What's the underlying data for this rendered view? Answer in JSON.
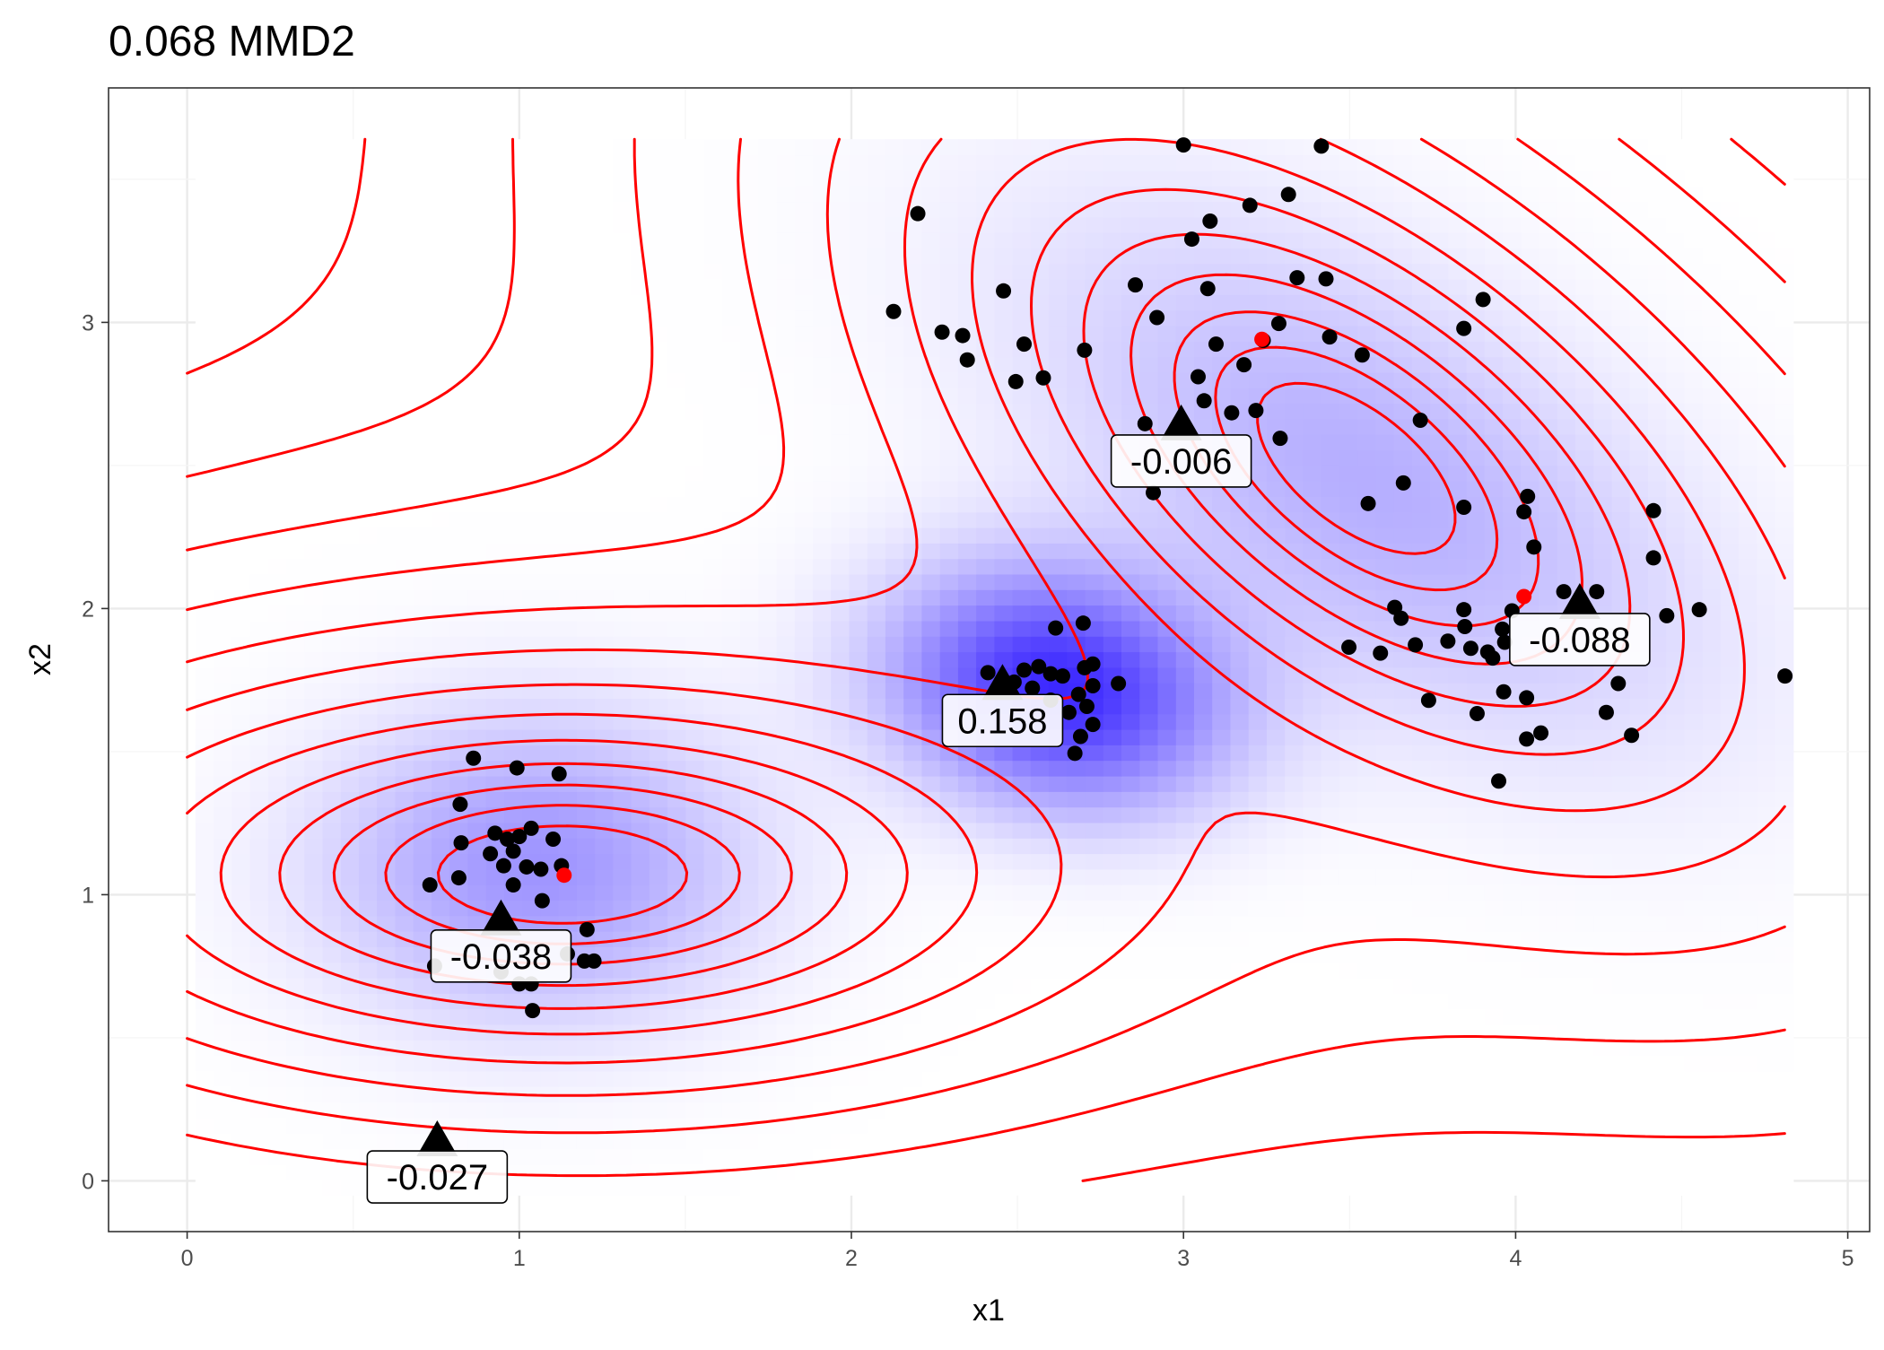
{
  "chart_data": {
    "type": "scatter",
    "title": "0.068 MMD2",
    "xlabel": "x1",
    "ylabel": "x2",
    "xlim": [
      -0.24,
      5.05
    ],
    "ylim": [
      -0.18,
      3.72
    ],
    "x_ticks": [
      "0",
      "1",
      "2",
      "3",
      "4",
      "5"
    ],
    "x_tick_values": [
      0,
      1,
      2,
      3,
      4,
      5
    ],
    "y_ticks": [
      "0",
      "1",
      "2",
      "3"
    ],
    "y_tick_values": [
      0,
      1,
      2,
      3
    ],
    "grid": true,
    "colors": {
      "points": "#000000",
      "centers": "#ff0000",
      "contour": "#ff0000",
      "heat_high": "#3c28ff",
      "heat_low": "#ffffff"
    },
    "heatmap_range": {
      "x": [
        0.025,
        4.836
      ],
      "y": [
        -0.05,
        3.64
      ]
    },
    "heatmap_components": [
      {
        "mean": [
          2.62,
          1.72
        ],
        "scale": [
          0.36,
          0.28
        ],
        "angle": -20,
        "weight": 1.0
      },
      {
        "mean": [
          1.05,
          1.1
        ],
        "scale": [
          0.45,
          0.38
        ],
        "angle": 0,
        "weight": 0.5
      },
      {
        "mean": [
          3.55,
          2.45
        ],
        "scale": [
          0.85,
          0.45
        ],
        "angle": -40,
        "weight": 0.38
      }
    ],
    "contour_range": {
      "x": [
        0,
        4.81
      ],
      "y": [
        0,
        3.64
      ]
    },
    "contour_components": [
      {
        "mean": [
          1.13,
          1.07
        ],
        "scale": [
          0.55,
          0.25
        ],
        "angle": 0,
        "weight": 1.0
      },
      {
        "mean": [
          3.52,
          2.49
        ],
        "scale": [
          0.55,
          0.28
        ],
        "angle": -45,
        "weight": 1.0
      }
    ],
    "contour_levels": {
      "start": -0.57,
      "step": -0.42,
      "count": 30
    },
    "points": [
      [
        0.862,
        1.477
      ],
      [
        0.993,
        1.443
      ],
      [
        1.12,
        1.422
      ],
      [
        0.822,
        1.316
      ],
      [
        0.825,
        1.181
      ],
      [
        0.927,
        1.215
      ],
      [
        0.964,
        1.194
      ],
      [
        1.0,
        1.203
      ],
      [
        0.982,
        1.152
      ],
      [
        1.036,
        1.232
      ],
      [
        1.102,
        1.194
      ],
      [
        0.953,
        1.101
      ],
      [
        0.913,
        1.143
      ],
      [
        1.022,
        1.097
      ],
      [
        1.065,
        1.089
      ],
      [
        1.127,
        1.101
      ],
      [
        0.731,
        1.034
      ],
      [
        0.818,
        1.059
      ],
      [
        0.982,
        1.034
      ],
      [
        1.069,
        0.979
      ],
      [
        1.204,
        0.878
      ],
      [
        1.145,
        0.793
      ],
      [
        1.196,
        0.768
      ],
      [
        1.225,
        0.768
      ],
      [
        0.945,
        0.73
      ],
      [
        1.0,
        0.688
      ],
      [
        1.036,
        0.688
      ],
      [
        1.04,
        0.595
      ],
      [
        0.745,
        0.751
      ],
      [
        2.615,
        1.932
      ],
      [
        2.698,
        1.949
      ],
      [
        2.411,
        1.776
      ],
      [
        2.52,
        1.785
      ],
      [
        2.564,
        1.797
      ],
      [
        2.6,
        1.772
      ],
      [
        2.636,
        1.764
      ],
      [
        2.702,
        1.793
      ],
      [
        2.727,
        1.806
      ],
      [
        2.804,
        1.738
      ],
      [
        2.684,
        1.7
      ],
      [
        2.709,
        1.658
      ],
      [
        2.727,
        1.595
      ],
      [
        2.69,
        1.553
      ],
      [
        2.673,
        1.494
      ],
      [
        2.727,
        1.73
      ],
      [
        2.6,
        1.68
      ],
      [
        2.655,
        1.637
      ],
      [
        2.545,
        1.722
      ],
      [
        2.49,
        1.743
      ],
      [
        3.0,
        3.62
      ],
      [
        3.415,
        3.616
      ],
      [
        2.2,
        3.38
      ],
      [
        3.316,
        3.447
      ],
      [
        3.2,
        3.409
      ],
      [
        3.08,
        3.354
      ],
      [
        3.025,
        3.291
      ],
      [
        2.127,
        3.038
      ],
      [
        2.273,
        2.966
      ],
      [
        2.335,
        2.954
      ],
      [
        2.349,
        2.869
      ],
      [
        2.458,
        3.11
      ],
      [
        2.52,
        2.924
      ],
      [
        2.495,
        2.793
      ],
      [
        2.578,
        2.806
      ],
      [
        2.702,
        2.903
      ],
      [
        2.855,
        3.131
      ],
      [
        2.92,
        3.017
      ],
      [
        3.073,
        3.118
      ],
      [
        3.342,
        3.156
      ],
      [
        3.429,
        3.152
      ],
      [
        3.44,
        2.949
      ],
      [
        3.538,
        2.886
      ],
      [
        3.287,
        2.996
      ],
      [
        3.24,
        2.937
      ],
      [
        3.098,
        2.924
      ],
      [
        3.182,
        2.852
      ],
      [
        3.044,
        2.81
      ],
      [
        3.062,
        2.726
      ],
      [
        3.145,
        2.684
      ],
      [
        3.218,
        2.692
      ],
      [
        3.291,
        2.595
      ],
      [
        2.884,
        2.646
      ],
      [
        2.909,
        2.405
      ],
      [
        3.556,
        2.367
      ],
      [
        3.662,
        2.439
      ],
      [
        3.713,
        2.658
      ],
      [
        3.844,
        2.354
      ],
      [
        3.844,
        2.979
      ],
      [
        3.902,
        3.08
      ],
      [
        4.036,
        2.392
      ],
      [
        4.025,
        2.338
      ],
      [
        4.055,
        2.215
      ],
      [
        4.415,
        2.342
      ],
      [
        4.415,
        2.177
      ],
      [
        4.553,
        1.996
      ],
      [
        4.145,
        2.059
      ],
      [
        4.244,
        2.059
      ],
      [
        3.636,
        2.004
      ],
      [
        3.655,
        1.966
      ],
      [
        3.498,
        1.865
      ],
      [
        3.593,
        1.844
      ],
      [
        3.698,
        1.873
      ],
      [
        3.796,
        1.886
      ],
      [
        3.847,
        1.937
      ],
      [
        3.844,
        1.996
      ],
      [
        3.865,
        1.861
      ],
      [
        3.96,
        1.928
      ],
      [
        3.916,
        1.848
      ],
      [
        3.931,
        1.827
      ],
      [
        3.967,
        1.882
      ],
      [
        3.989,
        1.992
      ],
      [
        4.309,
        1.738
      ],
      [
        3.964,
        1.709
      ],
      [
        4.033,
        1.688
      ],
      [
        4.033,
        1.544
      ],
      [
        4.076,
        1.565
      ],
      [
        4.273,
        1.637
      ],
      [
        4.349,
        1.557
      ],
      [
        3.884,
        1.633
      ],
      [
        3.949,
        1.397
      ],
      [
        3.738,
        1.679
      ],
      [
        4.811,
        1.764
      ],
      [
        4.455,
        1.975
      ]
    ],
    "centers": [
      [
        1.135,
        1.068
      ],
      [
        3.236,
        2.941
      ],
      [
        4.025,
        2.042
      ]
    ],
    "test_locations": [
      {
        "x": 0.753,
        "y": 0.139,
        "label": "-0.027"
      },
      {
        "x": 0.945,
        "y": 0.911,
        "label": "-0.038"
      },
      {
        "x": 2.455,
        "y": 1.734,
        "label": "0.158"
      },
      {
        "x": 2.993,
        "y": 2.641,
        "label": "-0.006"
      },
      {
        "x": 4.193,
        "y": 2.017,
        "label": "-0.088"
      }
    ]
  }
}
